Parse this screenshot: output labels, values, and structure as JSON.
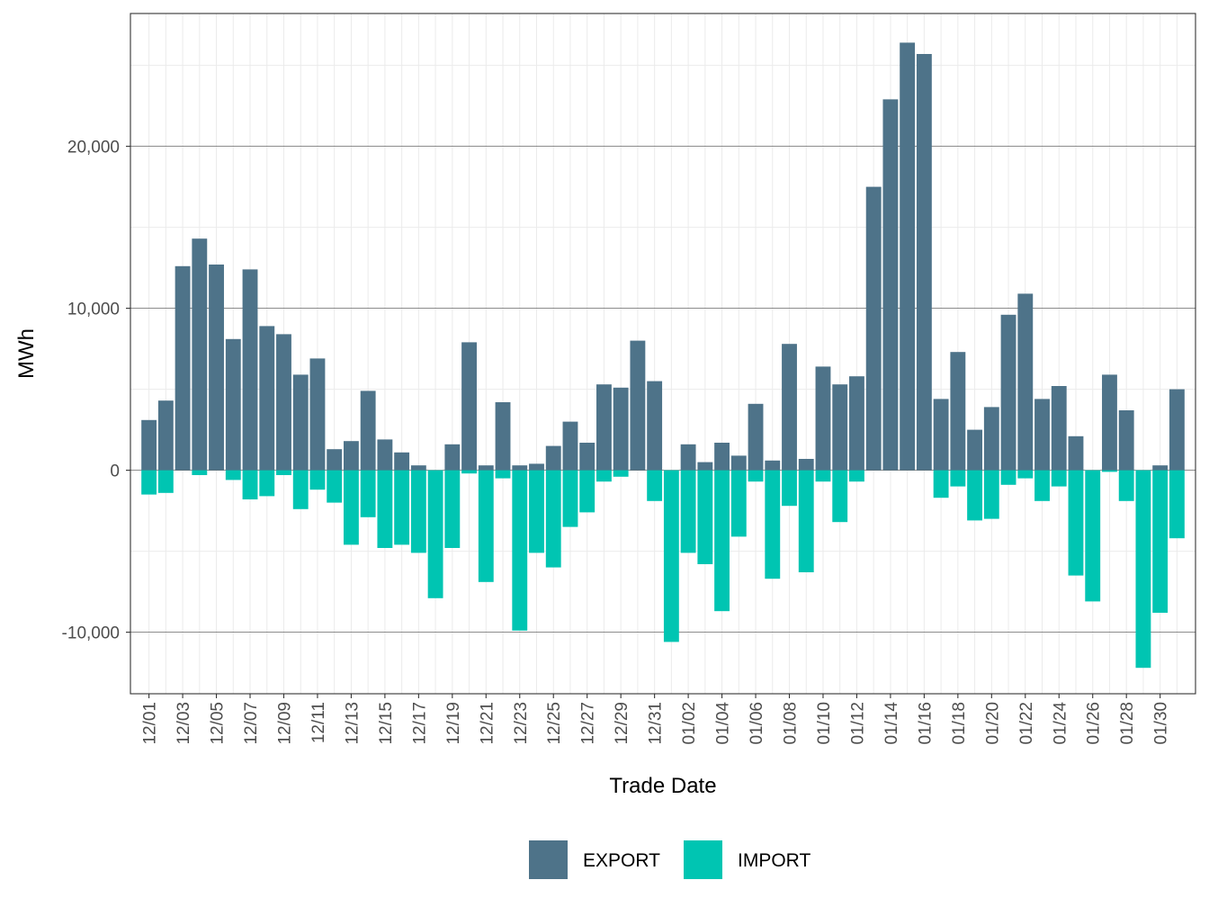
{
  "chart_data": {
    "type": "bar",
    "title": "",
    "xlabel": "Trade Date",
    "ylabel": "MWh",
    "ylim": [
      -13800,
      28200
    ],
    "yticks": [
      -10000,
      0,
      10000,
      20000
    ],
    "ytick_labels": [
      "-10,000",
      "0",
      "10,000",
      "20,000"
    ],
    "grid": true,
    "legend_position": "bottom",
    "categories": [
      "12/01",
      "12/02",
      "12/03",
      "12/04",
      "12/05",
      "12/06",
      "12/07",
      "12/08",
      "12/09",
      "12/10",
      "12/11",
      "12/12",
      "12/13",
      "12/14",
      "12/15",
      "12/16",
      "12/17",
      "12/18",
      "12/19",
      "12/20",
      "12/21",
      "12/22",
      "12/23",
      "12/24",
      "12/25",
      "12/26",
      "12/27",
      "12/28",
      "12/29",
      "12/30",
      "12/31",
      "01/01",
      "01/02",
      "01/03",
      "01/04",
      "01/05",
      "01/06",
      "01/07",
      "01/08",
      "01/09",
      "01/10",
      "01/11",
      "01/12",
      "01/13",
      "01/14",
      "01/15",
      "01/16",
      "01/17",
      "01/18",
      "01/19",
      "01/20",
      "01/21",
      "01/22",
      "01/23",
      "01/24",
      "01/25",
      "01/26",
      "01/27",
      "01/28",
      "01/29",
      "01/30",
      "01/31"
    ],
    "xtick_labels": [
      "12/01",
      "12/03",
      "12/05",
      "12/07",
      "12/09",
      "12/11",
      "12/13",
      "12/15",
      "12/17",
      "12/19",
      "12/21",
      "12/23",
      "12/25",
      "12/27",
      "12/29",
      "12/31",
      "01/02",
      "01/04",
      "01/06",
      "01/08",
      "01/10",
      "01/12",
      "01/14",
      "01/16",
      "01/18",
      "01/20",
      "01/22",
      "01/24",
      "01/26",
      "01/28",
      "01/30"
    ],
    "series": [
      {
        "name": "EXPORT",
        "color": "#4e7389",
        "values": [
          3100,
          4300,
          12600,
          14300,
          12700,
          8100,
          12400,
          8900,
          8400,
          5900,
          6900,
          1300,
          1800,
          4900,
          1900,
          1100,
          300,
          0,
          1600,
          7900,
          300,
          4200,
          300,
          400,
          1500,
          3000,
          1700,
          5300,
          5100,
          8000,
          5500,
          0,
          1600,
          500,
          1700,
          900,
          4100,
          600,
          7800,
          700,
          6400,
          5300,
          5800,
          17500,
          22900,
          26400,
          25700,
          4400,
          7300,
          2500,
          3900,
          9600,
          10900,
          4400,
          5200,
          2100,
          0,
          5900,
          3700,
          0,
          300,
          5000
        ]
      },
      {
        "name": "IMPORT",
        "color": "#00c5b2",
        "values": [
          -1500,
          -1400,
          0,
          -300,
          0,
          -600,
          -1800,
          -1600,
          -300,
          -2400,
          -1200,
          -2000,
          -4600,
          -2900,
          -4800,
          -4600,
          -5100,
          -7900,
          -4800,
          -200,
          -6900,
          -500,
          -9900,
          -5100,
          -6000,
          -3500,
          -2600,
          -700,
          -400,
          0,
          -1900,
          -10600,
          -5100,
          -5800,
          -8700,
          -4100,
          -700,
          -6700,
          -2200,
          -6300,
          -700,
          -3200,
          -700,
          0,
          0,
          0,
          0,
          -1700,
          -1000,
          -3100,
          -3000,
          -900,
          -500,
          -1900,
          -1000,
          -6500,
          -8100,
          -100,
          -1900,
          -12200,
          -8800,
          -4200
        ]
      }
    ]
  }
}
